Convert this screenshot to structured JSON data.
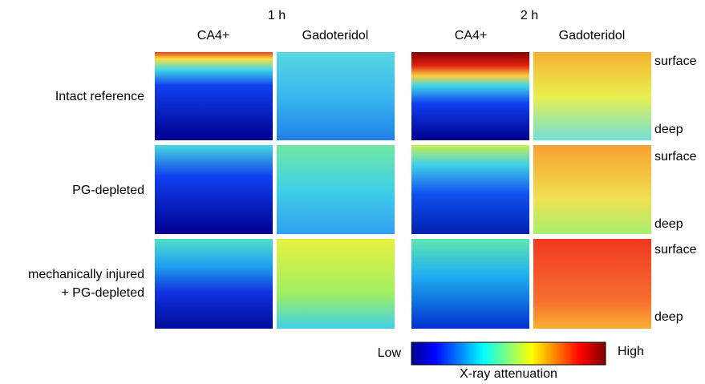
{
  "time_labels": [
    "1 h",
    "2 h"
  ],
  "column_labels": [
    "CA4+",
    "Gadoteridol",
    "CA4+",
    "Gadoteridol"
  ],
  "row_labels": [
    [
      "Intact reference"
    ],
    [
      "PG-depleted"
    ],
    [
      "mechanically injured",
      "+ PG-depleted"
    ]
  ],
  "depth_labels": [
    [
      "surface",
      "deep"
    ],
    [
      "surface",
      "deep"
    ],
    [
      "surface",
      "deep"
    ]
  ],
  "colorbar": {
    "low": "Low",
    "high": "High",
    "label": "X-ray attenuation"
  }
}
